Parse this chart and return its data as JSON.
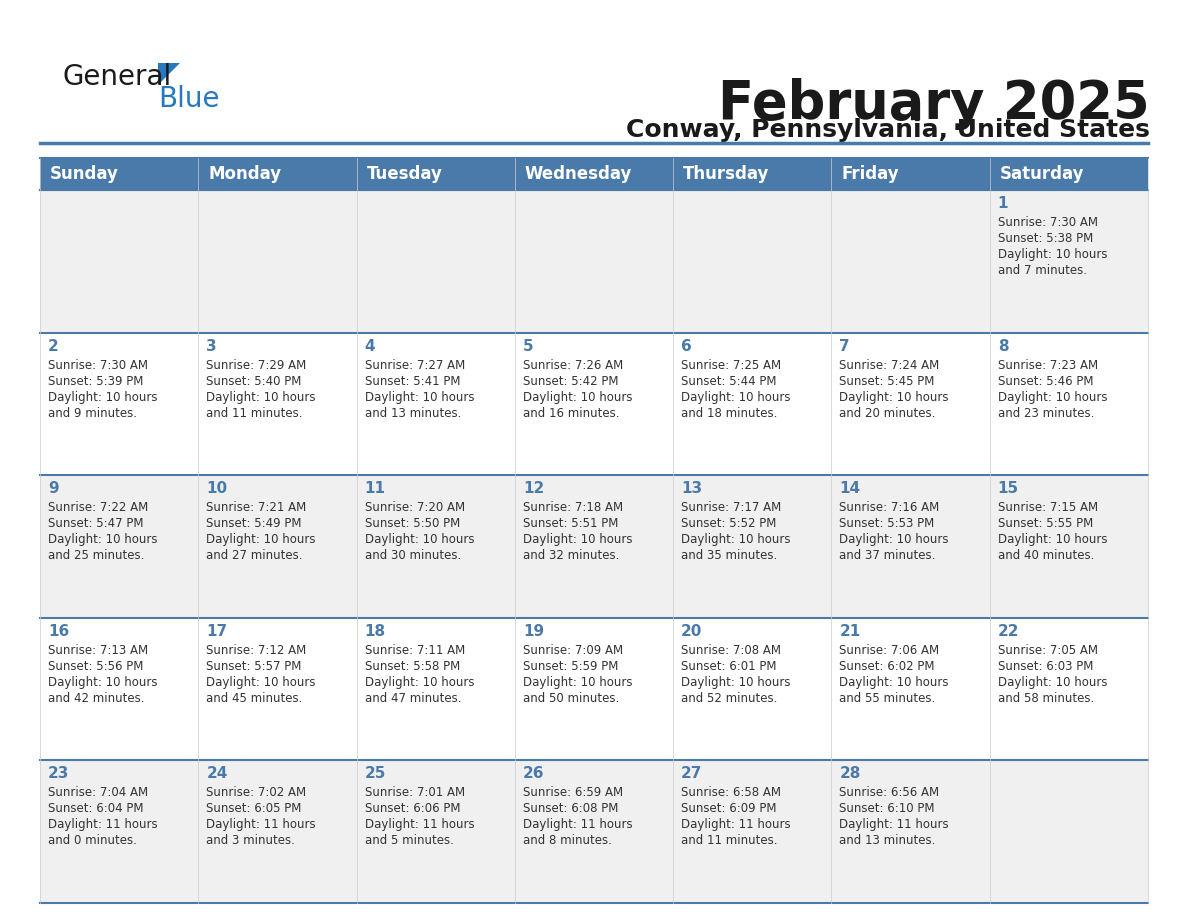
{
  "title": "February 2025",
  "subtitle": "Conway, Pennsylvania, United States",
  "days_of_week": [
    "Sunday",
    "Monday",
    "Tuesday",
    "Wednesday",
    "Thursday",
    "Friday",
    "Saturday"
  ],
  "header_bg": "#4a7aaa",
  "header_text_color": "#ffffff",
  "row_bg_light": "#f0f0f0",
  "row_bg_white": "#ffffff",
  "cell_border_color": "#4a7aaa",
  "day_num_color": "#4a7aaa",
  "text_color": "#333333",
  "calendar_data": [
    [
      null,
      null,
      null,
      null,
      null,
      null,
      {
        "day": 1,
        "sunrise": "7:30 AM",
        "sunset": "5:38 PM",
        "daylight": "10 hours and 7 minutes."
      }
    ],
    [
      {
        "day": 2,
        "sunrise": "7:30 AM",
        "sunset": "5:39 PM",
        "daylight": "10 hours and 9 minutes."
      },
      {
        "day": 3,
        "sunrise": "7:29 AM",
        "sunset": "5:40 PM",
        "daylight": "10 hours and 11 minutes."
      },
      {
        "day": 4,
        "sunrise": "7:27 AM",
        "sunset": "5:41 PM",
        "daylight": "10 hours and 13 minutes."
      },
      {
        "day": 5,
        "sunrise": "7:26 AM",
        "sunset": "5:42 PM",
        "daylight": "10 hours and 16 minutes."
      },
      {
        "day": 6,
        "sunrise": "7:25 AM",
        "sunset": "5:44 PM",
        "daylight": "10 hours and 18 minutes."
      },
      {
        "day": 7,
        "sunrise": "7:24 AM",
        "sunset": "5:45 PM",
        "daylight": "10 hours and 20 minutes."
      },
      {
        "day": 8,
        "sunrise": "7:23 AM",
        "sunset": "5:46 PM",
        "daylight": "10 hours and 23 minutes."
      }
    ],
    [
      {
        "day": 9,
        "sunrise": "7:22 AM",
        "sunset": "5:47 PM",
        "daylight": "10 hours and 25 minutes."
      },
      {
        "day": 10,
        "sunrise": "7:21 AM",
        "sunset": "5:49 PM",
        "daylight": "10 hours and 27 minutes."
      },
      {
        "day": 11,
        "sunrise": "7:20 AM",
        "sunset": "5:50 PM",
        "daylight": "10 hours and 30 minutes."
      },
      {
        "day": 12,
        "sunrise": "7:18 AM",
        "sunset": "5:51 PM",
        "daylight": "10 hours and 32 minutes."
      },
      {
        "day": 13,
        "sunrise": "7:17 AM",
        "sunset": "5:52 PM",
        "daylight": "10 hours and 35 minutes."
      },
      {
        "day": 14,
        "sunrise": "7:16 AM",
        "sunset": "5:53 PM",
        "daylight": "10 hours and 37 minutes."
      },
      {
        "day": 15,
        "sunrise": "7:15 AM",
        "sunset": "5:55 PM",
        "daylight": "10 hours and 40 minutes."
      }
    ],
    [
      {
        "day": 16,
        "sunrise": "7:13 AM",
        "sunset": "5:56 PM",
        "daylight": "10 hours and 42 minutes."
      },
      {
        "day": 17,
        "sunrise": "7:12 AM",
        "sunset": "5:57 PM",
        "daylight": "10 hours and 45 minutes."
      },
      {
        "day": 18,
        "sunrise": "7:11 AM",
        "sunset": "5:58 PM",
        "daylight": "10 hours and 47 minutes."
      },
      {
        "day": 19,
        "sunrise": "7:09 AM",
        "sunset": "5:59 PM",
        "daylight": "10 hours and 50 minutes."
      },
      {
        "day": 20,
        "sunrise": "7:08 AM",
        "sunset": "6:01 PM",
        "daylight": "10 hours and 52 minutes."
      },
      {
        "day": 21,
        "sunrise": "7:06 AM",
        "sunset": "6:02 PM",
        "daylight": "10 hours and 55 minutes."
      },
      {
        "day": 22,
        "sunrise": "7:05 AM",
        "sunset": "6:03 PM",
        "daylight": "10 hours and 58 minutes."
      }
    ],
    [
      {
        "day": 23,
        "sunrise": "7:04 AM",
        "sunset": "6:04 PM",
        "daylight": "11 hours and 0 minutes."
      },
      {
        "day": 24,
        "sunrise": "7:02 AM",
        "sunset": "6:05 PM",
        "daylight": "11 hours and 3 minutes."
      },
      {
        "day": 25,
        "sunrise": "7:01 AM",
        "sunset": "6:06 PM",
        "daylight": "11 hours and 5 minutes."
      },
      {
        "day": 26,
        "sunrise": "6:59 AM",
        "sunset": "6:08 PM",
        "daylight": "11 hours and 8 minutes."
      },
      {
        "day": 27,
        "sunrise": "6:58 AM",
        "sunset": "6:09 PM",
        "daylight": "11 hours and 11 minutes."
      },
      {
        "day": 28,
        "sunrise": "6:56 AM",
        "sunset": "6:10 PM",
        "daylight": "11 hours and 13 minutes."
      },
      null
    ]
  ]
}
